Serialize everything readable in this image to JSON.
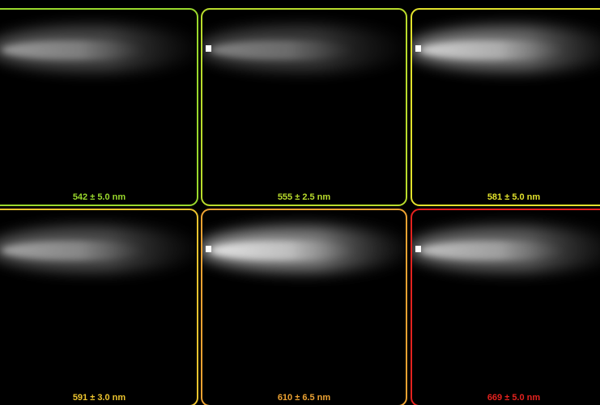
{
  "panels": [
    {
      "label": "542 ± 5.0 nm",
      "color": "#9ad92c"
    },
    {
      "label": "555 ± 2.5 nm",
      "color": "#b9dc2c"
    },
    {
      "label": "581 ± 5.0 nm",
      "color": "#e2e22c"
    },
    {
      "label": "591 ± 3.0 nm",
      "color": "#ecc42e"
    },
    {
      "label": "610 ± 6.5 nm",
      "color": "#eca232"
    },
    {
      "label": "669 ± 5.0 nm",
      "color": "#e4221e"
    }
  ]
}
